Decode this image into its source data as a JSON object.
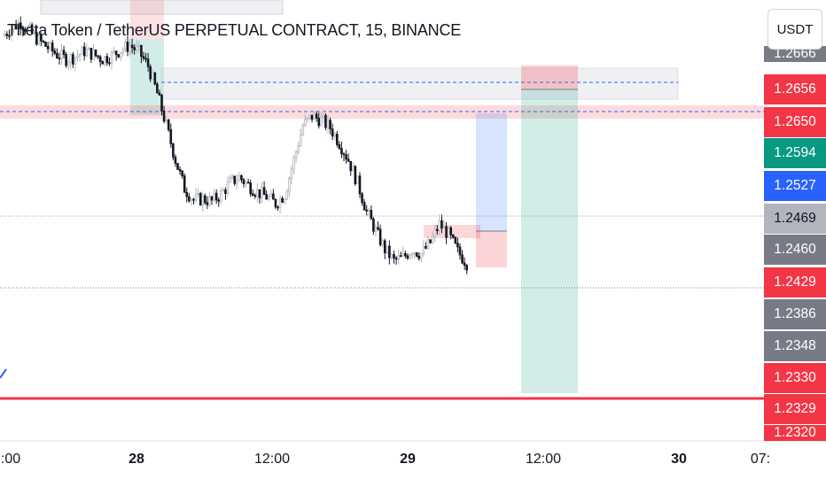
{
  "header": {
    "title": "Theta Token / TetherUS PERPETUAL CONTRACT, 15, BINANCE",
    "currency": "USDT"
  },
  "colors": {
    "red": "#f23645",
    "green": "#089981",
    "blue": "#2962ff",
    "gray": "#787b86",
    "lightgray": "#b2b5be",
    "candle": "#131722"
  },
  "price_axis": [
    {
      "label": "1.2666",
      "color": "gray",
      "partial": "top"
    },
    {
      "label": "1.2656",
      "color": "red"
    },
    {
      "label": "1.2650",
      "color": "red"
    },
    {
      "label": "1.2594",
      "color": "green"
    },
    {
      "label": "1.2527",
      "color": "blue"
    },
    {
      "label": "1.2469",
      "color": "lightgray",
      "dark_text": true
    },
    {
      "label": "1.2460",
      "color": "gray"
    },
    {
      "label": "1.2429",
      "color": "red"
    },
    {
      "label": "1.2386",
      "color": "gray"
    },
    {
      "label": "1.2348",
      "color": "gray"
    },
    {
      "label": "1.2330",
      "color": "red"
    },
    {
      "label": "1.2329",
      "color": "red"
    },
    {
      "label": "1.2320",
      "color": "red",
      "partial": "bottom"
    }
  ],
  "time_axis": [
    {
      "label": ":00",
      "bold": false
    },
    {
      "label": "28",
      "bold": true
    },
    {
      "label": "12:00",
      "bold": false
    },
    {
      "label": "29",
      "bold": true
    },
    {
      "label": "12:00",
      "bold": false
    },
    {
      "label": "30",
      "bold": true
    },
    {
      "label": "07:",
      "bold": false
    }
  ],
  "chart_data": {
    "type": "candlestick",
    "title": "Theta Token / TetherUS PERPETUAL CONTRACT, 15, BINANCE",
    "symbol": "THETAUSDT.P",
    "exchange": "BINANCE",
    "interval": "15",
    "currency": "USDT",
    "x_ticks": [
      ":00",
      "28",
      "12:00",
      "29",
      "12:00",
      "30",
      "07:"
    ],
    "y_ticks": [
      1.2656,
      1.265,
      1.2594,
      1.2527,
      1.2469,
      1.246,
      1.2429,
      1.2386,
      1.2348,
      1.233,
      1.2329
    ],
    "ylim": [
      1.2315,
      1.2684
    ],
    "grid": false,
    "approximate_closes": [
      1.2668,
      1.2675,
      1.268,
      1.2672,
      1.2664,
      1.2658,
      1.2652,
      1.2648,
      1.265,
      1.2655,
      1.2652,
      1.2648,
      1.2651,
      1.2656,
      1.266,
      1.2654,
      1.2642,
      1.2618,
      1.259,
      1.256,
      1.2535,
      1.2525,
      1.2526,
      1.2524,
      1.253,
      1.254,
      1.2545,
      1.2538,
      1.2532,
      1.2528,
      1.2522,
      1.253,
      1.256,
      1.259,
      1.2598,
      1.2595,
      1.2588,
      1.2575,
      1.256,
      1.254,
      1.2515,
      1.2498,
      1.2482,
      1.2472,
      1.2475,
      1.2482,
      1.2478,
      1.2488,
      1.2504,
      1.2495,
      1.248,
      1.247
    ],
    "levels": [
      1.2656,
      1.265,
      1.2469,
      1.2429,
      1.2329
    ]
  }
}
